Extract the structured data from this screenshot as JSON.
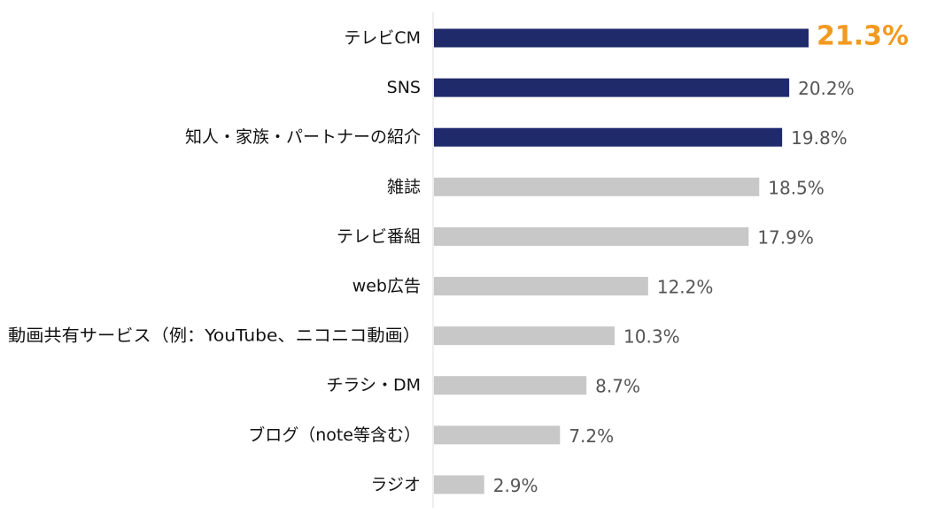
{
  "chart_data": {
    "type": "bar",
    "orientation": "horizontal",
    "categories": [
      "テレビCM",
      "SNS",
      "知人・家族・パートナーの紹介",
      "雑誌",
      "テレビ番組",
      "web広告",
      "動画共有サービス（例：YouTube、ニコニコ動画）",
      "チラシ・DM",
      "ブログ（note等含む）",
      "ラジオ"
    ],
    "values": [
      21.3,
      20.2,
      19.8,
      18.5,
      17.9,
      12.2,
      10.3,
      8.7,
      7.2,
      2.9
    ],
    "value_labels": [
      "21.3%",
      "20.2%",
      "19.8%",
      "18.5%",
      "17.9%",
      "12.2%",
      "10.3%",
      "8.7%",
      "7.2%",
      "2.9%"
    ],
    "highlight_count": 3,
    "xlim": [
      0,
      21.3
    ],
    "grid": false,
    "colors": {
      "highlight_bar": "#1f2a6b",
      "normal_bar": "#c8c8c8",
      "top_label": "#f29a1f",
      "label": "#555555",
      "category": "#111111",
      "axis": "#dcdcdc"
    }
  }
}
